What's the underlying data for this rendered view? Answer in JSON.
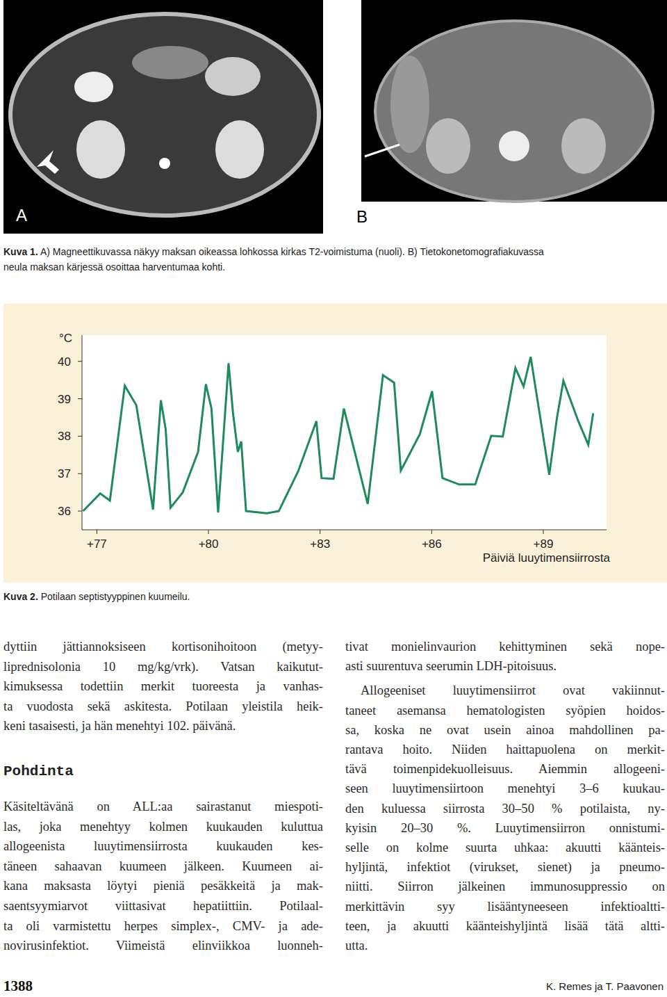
{
  "figure1": {
    "panels": [
      "A",
      "B"
    ],
    "caption_label": "Kuva 1.",
    "caption_lines": [
      "A) Magneettikuvassa näkyy maksan oikeassa lohkossa kirkas T2-voimistuma (nuoli). B) Tietokonetomografiakuvassa",
      "neula maksan kärjessä osoittaa harventumaa kohti."
    ]
  },
  "chart_data": {
    "type": "line",
    "ylabel": "°C",
    "xlabel": "Päiviä luuytimensiirrosta",
    "x": [
      76.63,
      77.09,
      77.35,
      77.75,
      78.06,
      78.51,
      78.72,
      78.85,
      78.98,
      79.31,
      79.72,
      79.93,
      80.08,
      80.26,
      80.54,
      80.66,
      80.79,
      80.88,
      81.01,
      81.57,
      81.89,
      82.41,
      82.9,
      83.04,
      83.36,
      83.64,
      84.28,
      84.69,
      84.99,
      85.17,
      85.68,
      86.01,
      86.29,
      86.74,
      87.17,
      87.6,
      87.91,
      88.25,
      88.47,
      88.66,
      89.16,
      89.37,
      89.54,
      89.95,
      90.21,
      90.34
    ],
    "values": [
      36.0,
      36.47,
      36.28,
      39.35,
      38.83,
      36.04,
      38.96,
      38.18,
      36.09,
      36.5,
      37.58,
      39.39,
      38.74,
      35.96,
      39.95,
      38.61,
      37.58,
      37.86,
      36.0,
      35.94,
      36.0,
      37.06,
      38.4,
      36.88,
      36.86,
      38.74,
      36.19,
      39.63,
      39.43,
      37.08,
      38.05,
      39.2,
      36.88,
      36.71,
      36.71,
      38.01,
      37.99,
      39.82,
      39.33,
      40.12,
      36.97,
      38.51,
      39.48,
      38.38,
      37.77,
      38.61
    ],
    "color": "#1f8a5c",
    "xlim": [
      76.6,
      90.7
    ],
    "xticks": [
      {
        "value": 77,
        "label": "+77"
      },
      {
        "value": 80,
        "label": "+80"
      },
      {
        "value": 83,
        "label": "+83"
      },
      {
        "value": 86,
        "label": "+86"
      },
      {
        "value": 89,
        "label": "+89"
      }
    ],
    "ylim": [
      35.5,
      40.7
    ],
    "yticks": [
      36,
      37,
      38,
      39,
      40
    ],
    "grid": false
  },
  "figure2": {
    "caption_label": "Kuva 2.",
    "caption": "Potilaan septistyyppinen kuumeilu."
  },
  "body": {
    "left": [
      {
        "lines": [
          "dyttiin jättiannoksiseen kortisonihoitoon (metyy-",
          "liprednisolonia 10 mg/kg/vrk). Vatsan kaikutut-",
          "kimuksessa todettiin merkit tuoreesta ja vanhas-",
          "ta vuodosta sekä askitesta. Potilaan yleistila heik-",
          "keni tasaisesti, ja hän menehtyi 102. päivänä."
        ]
      },
      {
        "heading": "Pohdinta"
      },
      {
        "lines": [
          "Käsiteltävänä on ALL:aa sairastanut miespoti-",
          "las, joka menehtyy kolmen kuukauden kuluttua",
          "allogeenista luuytimensiirrosta kuukauden kes-",
          "täneen sahaavan kuumeen jälkeen. Kuumeen ai-",
          "kana maksasta löytyi pieniä pesäkkeitä ja mak-",
          "saentsyymiarvot viittasivat hepatiittiin. Potilaal-",
          "ta oli varmistettu herpes simplex-, CMV- ja ade-",
          "novirusinfektiot. Viimeistä elinviikkoa luonneh-"
        ]
      }
    ],
    "right": [
      {
        "lines": [
          "tivat monielinvaurion kehittyminen sekä nope-",
          "asti suurentuva seerumin LDH-pitoisuus."
        ]
      },
      {
        "lines": [
          "Allogeeniset luuytimensiirrot ovat vakiinnut-",
          "taneet asemansa hematologisten syöpien hoidos-",
          "sa, koska ne ovat usein ainoa mahdollinen pa-",
          "rantava hoito. Niiden haittapuolena on merkit-",
          "tävä toimenpidekuolleisuus. Aiemmin allogeeni-",
          "seen luuytimensiirtoon menehtyi 3–6 kuukau-",
          "den kuluessa siirrosta 30–50 % potilaista, ny-",
          "kyisin 20–30 %. Luuytimensiirron onnistumi-",
          "selle on kolme suurta uhkaa: akuutti käänteis-",
          "hyljintä, infektiot (virukset, sienet) ja pneumo-",
          "niitti. Siirron jälkeinen immunosuppressio on",
          "merkittävin syy lisääntyneeseen infektioaltti-",
          "teen, ja akuutti käänteishyljintä lisää tätä altti-",
          "utta."
        ]
      }
    ]
  },
  "footer": {
    "page": "1388",
    "authors": "K. Remes ja T. Paavonen"
  }
}
